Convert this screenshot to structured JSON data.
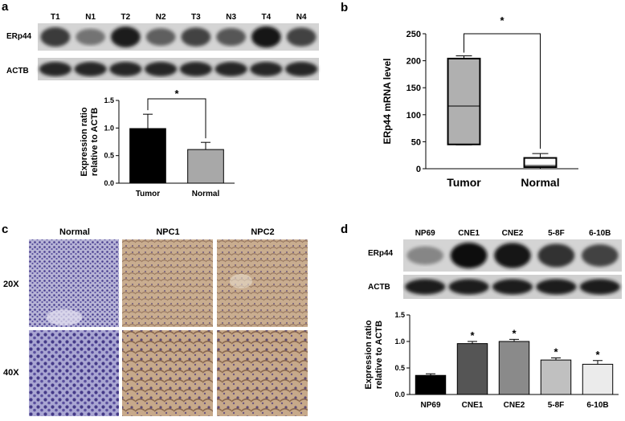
{
  "panel_a": {
    "letter": "a",
    "blot_lanes": [
      "T1",
      "N1",
      "T2",
      "N2",
      "T3",
      "N3",
      "T4",
      "N4"
    ],
    "row_labels": [
      "ERp44",
      "ACTB"
    ],
    "erp44_intensity": [
      0.75,
      0.45,
      0.9,
      0.55,
      0.7,
      0.6,
      0.95,
      0.7
    ],
    "actb_intensity": [
      0.85,
      0.85,
      0.85,
      0.85,
      0.85,
      0.85,
      0.85,
      0.85
    ],
    "sig_marker": "*"
  },
  "panel_b": {
    "letter": "b",
    "sig_marker": "*"
  },
  "panel_c": {
    "letter": "c",
    "col_labels": [
      "Normal",
      "NPC1",
      "NPC2"
    ],
    "row_labels": [
      "20X",
      "40X"
    ]
  },
  "panel_d": {
    "letter": "d",
    "blot_lanes": [
      "NP69",
      "CNE1",
      "CNE2",
      "5-8F",
      "6-10B"
    ],
    "row_labels": [
      "ERp44",
      "ACTB"
    ],
    "erp44_intensity": [
      0.35,
      1.0,
      0.95,
      0.8,
      0.7
    ],
    "actb_intensity": [
      0.9,
      0.9,
      0.9,
      0.9,
      0.9
    ]
  },
  "chart_data": [
    {
      "panel": "a",
      "type": "bar",
      "categories": [
        "Tumor",
        "Normal"
      ],
      "values": [
        0.99,
        0.61
      ],
      "errors": [
        0.26,
        0.13
      ],
      "colors": [
        "#000000",
        "#a8a8a8"
      ],
      "ylabel": "Expression ratio\nrelative to ACTB",
      "ylim": [
        0,
        1.5
      ],
      "yticks": [
        "0.0",
        "0.5",
        "1.0",
        "1.5"
      ],
      "annotations": [
        "*"
      ]
    },
    {
      "panel": "b",
      "type": "box",
      "categories": [
        "Tumor",
        "Normal"
      ],
      "boxes": [
        {
          "min": 44,
          "q1": 45,
          "median": 116,
          "q3": 204,
          "max": 209,
          "color": "#b0b0b0"
        },
        {
          "min": 0,
          "q1": 3,
          "median": 6,
          "q3": 20,
          "max": 28,
          "color": "#ffffff"
        }
      ],
      "ylabel": "ERp44 mRNA level",
      "ylim": [
        0,
        250
      ],
      "yticks": [
        "0",
        "50",
        "100",
        "150",
        "200",
        "250"
      ],
      "annotations": [
        "*"
      ]
    },
    {
      "panel": "d",
      "type": "bar",
      "categories": [
        "NP69",
        "CNE1",
        "CNE2",
        "5-8F",
        "6-10B"
      ],
      "values": [
        0.36,
        0.96,
        1.0,
        0.65,
        0.57
      ],
      "errors": [
        0.03,
        0.04,
        0.04,
        0.04,
        0.07
      ],
      "colors": [
        "#000000",
        "#555555",
        "#8a8a8a",
        "#c0c0c0",
        "#ebebeb"
      ],
      "significant": [
        false,
        true,
        true,
        true,
        true
      ],
      "ylabel": "Expression ratio\nrelative to ACTB",
      "ylim": [
        0,
        1.5
      ],
      "yticks": [
        "0.0",
        "0.5",
        "1.0",
        "1.5"
      ],
      "annotations": [
        "*",
        "*",
        "*",
        "*"
      ]
    }
  ]
}
